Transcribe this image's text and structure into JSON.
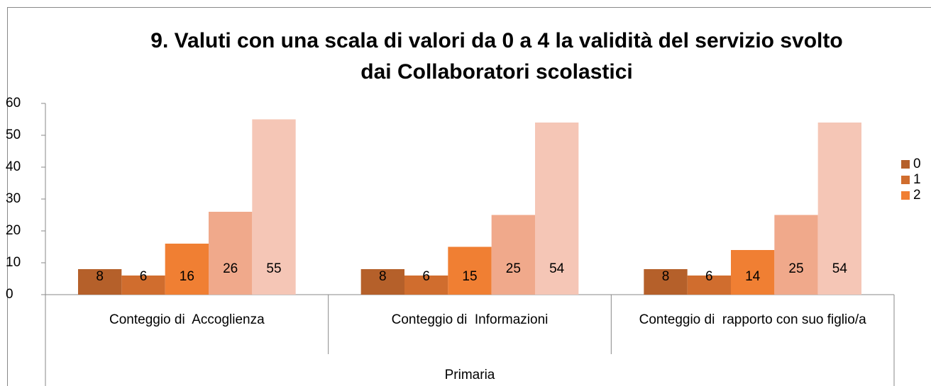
{
  "chart_data": {
    "type": "bar",
    "title": "9.   Valuti con una scala di valori da 0 a 4 la validità del servizio svolto dai Collaboratori scolastici",
    "categories": [
      "Conteggio di  Accoglienza",
      "Conteggio di  Informazioni",
      "Conteggio di  rapporto con suo figlio/a"
    ],
    "group_label": "Primaria",
    "series": [
      {
        "name": "0",
        "color": "#b5602a",
        "values": [
          8,
          8,
          8
        ]
      },
      {
        "name": "1",
        "color": "#d06d2e",
        "values": [
          6,
          6,
          6
        ]
      },
      {
        "name": "2",
        "color": "#f07f33",
        "values": [
          16,
          15,
          14
        ]
      },
      {
        "color": "#f0a98b",
        "values": [
          26,
          25,
          25
        ]
      },
      {
        "color": "#f5c6b6",
        "values": [
          55,
          54,
          54
        ]
      }
    ],
    "ylim": [
      0,
      60
    ],
    "yticks": [
      0,
      10,
      20,
      30,
      40,
      50,
      60
    ],
    "grid": false,
    "legend": "right"
  }
}
